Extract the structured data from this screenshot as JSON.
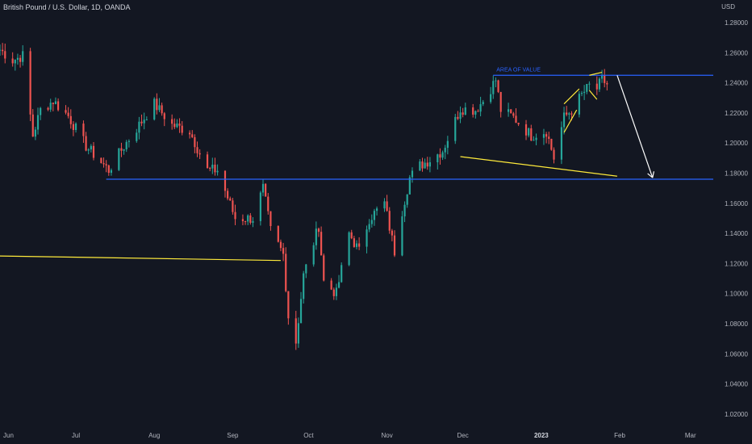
{
  "header": {
    "symbol_title": "British Pound / U.S. Dollar, 1D, OANDA",
    "currency": "USD"
  },
  "colors": {
    "background": "#131722",
    "up_candle": "#26a69a",
    "down_candle": "#ef5350",
    "support_line": "#2962ff",
    "drawing": "#ffeb3b",
    "arrow": "#ffffff"
  },
  "chart_data": {
    "type": "candlestick",
    "y_axis": {
      "ticks": [
        "1.28000",
        "1.26000",
        "1.24000",
        "1.22000",
        "1.20000",
        "1.18000",
        "1.16000",
        "1.14000",
        "1.12000",
        "1.10000",
        "1.08000",
        "1.06000",
        "1.04000",
        "1.02000"
      ],
      "range": [
        1.013,
        1.295
      ],
      "position": "right"
    },
    "x_axis": {
      "ticks": [
        {
          "label": "Jun",
          "bold": false
        },
        {
          "label": "Jul",
          "bold": false
        },
        {
          "label": "Aug",
          "bold": false
        },
        {
          "label": "Sep",
          "bold": false
        },
        {
          "label": "Oct",
          "bold": false
        },
        {
          "label": "Nov",
          "bold": false
        },
        {
          "label": "Dec",
          "bold": false
        },
        {
          "label": "2023",
          "bold": true
        },
        {
          "label": "Feb",
          "bold": false
        },
        {
          "label": "Mar",
          "bold": false
        }
      ]
    },
    "price_path": [
      [
        "2022-06-01",
        1.262
      ],
      [
        "2022-06-06",
        1.255
      ],
      [
        "2022-06-10",
        1.258
      ],
      [
        "2022-06-14",
        1.205
      ],
      [
        "2022-06-17",
        1.222
      ],
      [
        "2022-06-22",
        1.228
      ],
      [
        "2022-06-28",
        1.218
      ],
      [
        "2022-07-05",
        1.198
      ],
      [
        "2022-07-14",
        1.182
      ],
      [
        "2022-07-20",
        1.198
      ],
      [
        "2022-08-01",
        1.226
      ],
      [
        "2022-08-08",
        1.212
      ],
      [
        "2022-08-15",
        1.208
      ],
      [
        "2022-08-22",
        1.182
      ],
      [
        "2022-08-26",
        1.182
      ],
      [
        "2022-09-02",
        1.15
      ],
      [
        "2022-09-09",
        1.15
      ],
      [
        "2022-09-13",
        1.17
      ],
      [
        "2022-09-16",
        1.142
      ],
      [
        "2022-09-21",
        1.126
      ],
      [
        "2022-09-23",
        1.085
      ],
      [
        "2022-09-26",
        1.068
      ],
      [
        "2022-09-29",
        1.112
      ],
      [
        "2022-10-05",
        1.145
      ],
      [
        "2022-10-07",
        1.108
      ],
      [
        "2022-10-12",
        1.1
      ],
      [
        "2022-10-17",
        1.14
      ],
      [
        "2022-10-21",
        1.128
      ],
      [
        "2022-10-25",
        1.15
      ],
      [
        "2022-10-31",
        1.16
      ],
      [
        "2022-11-04",
        1.128
      ],
      [
        "2022-11-07",
        1.155
      ],
      [
        "2022-11-10",
        1.177
      ],
      [
        "2022-11-14",
        1.185
      ],
      [
        "2022-11-18",
        1.189
      ],
      [
        "2022-11-23",
        1.195
      ],
      [
        "2022-11-30",
        1.223
      ],
      [
        "2022-12-06",
        1.222
      ],
      [
        "2022-12-09",
        1.228
      ],
      [
        "2022-12-14",
        1.242
      ],
      [
        "2022-12-16",
        1.222
      ],
      [
        "2022-12-21",
        1.217
      ],
      [
        "2022-12-28",
        1.205
      ],
      [
        "2023-01-03",
        1.208
      ],
      [
        "2023-01-06",
        1.19
      ],
      [
        "2023-01-10",
        1.217
      ],
      [
        "2023-01-13",
        1.222
      ],
      [
        "2023-01-17",
        1.232
      ],
      [
        "2023-01-20",
        1.238
      ],
      [
        "2023-01-23",
        1.236
      ],
      [
        "2023-01-25",
        1.242
      ],
      [
        "2023-01-27",
        1.239
      ]
    ],
    "horizontal_lines": [
      {
        "name": "support",
        "y": 1.176,
        "x_start": "2022-07-13",
        "color": "blue"
      },
      {
        "name": "area-of-value",
        "y": 1.245,
        "x_start": "2022-12-13",
        "color": "blue",
        "label": "AREA OF VALUE"
      }
    ],
    "trend_lines": [
      {
        "name": "old-level",
        "from": [
          "2022-06-01",
          1.125
        ],
        "to": [
          "2022-09-20",
          1.122
        ],
        "color": "yellow"
      },
      {
        "name": "lower-trendline",
        "from": [
          "2022-11-30",
          1.191
        ],
        "to": [
          "2023-01-31",
          1.178
        ],
        "color": "yellow"
      },
      {
        "name": "channel-upper",
        "from": [
          "2023-01-10",
          1.226
        ],
        "to": [
          "2023-01-16",
          1.236
        ],
        "color": "yellow"
      },
      {
        "name": "channel-lower",
        "from": [
          "2023-01-10",
          1.207
        ],
        "to": [
          "2023-01-15",
          1.222
        ],
        "color": "yellow"
      },
      {
        "name": "top-line",
        "from": [
          "2023-01-20",
          1.245
        ],
        "to": [
          "2023-01-25",
          1.247
        ],
        "color": "yellow"
      },
      {
        "name": "small-dip",
        "from": [
          "2023-01-20",
          1.235
        ],
        "to": [
          "2023-01-23",
          1.229
        ],
        "color": "yellow"
      }
    ],
    "projection_arrow": {
      "from": [
        "2023-01-31",
        1.245
      ],
      "to": [
        "2023-02-14",
        1.177
      ],
      "color": "white"
    }
  }
}
